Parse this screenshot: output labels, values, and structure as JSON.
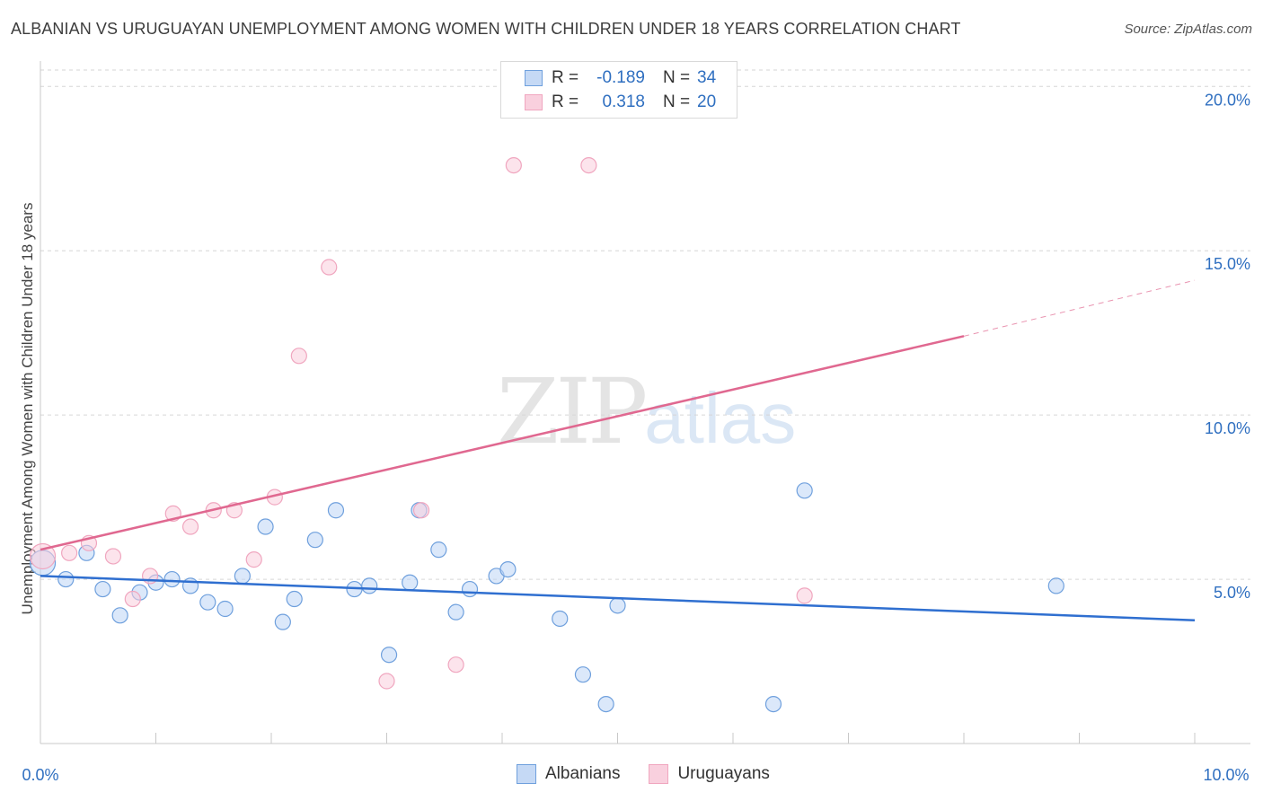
{
  "header": {
    "title": "ALBANIAN VS URUGUAYAN UNEMPLOYMENT AMONG WOMEN WITH CHILDREN UNDER 18 YEARS CORRELATION CHART",
    "source": "Source: ZipAtlas.com"
  },
  "watermark": {
    "zip": "ZIP",
    "atlas": "atlas"
  },
  "legend": {
    "rows": [
      {
        "r_label": "R =",
        "r_value": "-0.189",
        "n_label": "N =",
        "n_value": "34"
      },
      {
        "r_label": "R =",
        "r_value": "0.318",
        "n_label": "N =",
        "n_value": "20"
      }
    ],
    "bottom": [
      "Albanians",
      "Uruguayans"
    ]
  },
  "chart_data": {
    "type": "scatter",
    "title": "ALBANIAN VS URUGUAYAN UNEMPLOYMENT AMONG WOMEN WITH CHILDREN UNDER 18 YEARS CORRELATION CHART",
    "ylabel": "Unemployment Among Women with Children Under 18 years",
    "xlim": [
      0,
      10
    ],
    "ylim": [
      0,
      20.5
    ],
    "x_tick_labels": [
      "0.0%",
      "10.0%"
    ],
    "y_tick_labels": [
      "5.0%",
      "10.0%",
      "15.0%",
      "20.0%"
    ],
    "y_ticks": [
      5,
      10,
      15,
      20
    ],
    "grid": "horizontal dashed",
    "legend_position": "top-center",
    "colors": {
      "albanians": "#6fa0dd",
      "uruguayans": "#f0a6bf",
      "albanians_line": "#2f6fd0",
      "uruguayans_line": "#e06890"
    },
    "series": [
      {
        "name": "Albanians",
        "r": -0.189,
        "n": 34,
        "points": [
          [
            0.02,
            5.5
          ],
          [
            0.22,
            5.0
          ],
          [
            0.4,
            5.8
          ],
          [
            0.54,
            4.7
          ],
          [
            0.69,
            3.9
          ],
          [
            0.86,
            4.6
          ],
          [
            1.0,
            4.9
          ],
          [
            1.14,
            5.0
          ],
          [
            1.3,
            4.8
          ],
          [
            1.45,
            4.3
          ],
          [
            1.6,
            4.1
          ],
          [
            1.75,
            5.1
          ],
          [
            1.95,
            6.6
          ],
          [
            2.1,
            3.7
          ],
          [
            2.2,
            4.4
          ],
          [
            2.38,
            6.2
          ],
          [
            2.56,
            7.1
          ],
          [
            2.72,
            4.7
          ],
          [
            2.85,
            4.8
          ],
          [
            3.02,
            2.7
          ],
          [
            3.2,
            4.9
          ],
          [
            3.28,
            7.1
          ],
          [
            3.45,
            5.9
          ],
          [
            3.6,
            4.0
          ],
          [
            3.72,
            4.7
          ],
          [
            3.95,
            5.1
          ],
          [
            4.05,
            5.3
          ],
          [
            4.5,
            3.8
          ],
          [
            4.7,
            2.1
          ],
          [
            4.9,
            1.2
          ],
          [
            5.0,
            4.2
          ],
          [
            6.35,
            1.2
          ],
          [
            6.62,
            7.7
          ],
          [
            8.8,
            4.8
          ]
        ],
        "trend": {
          "x0": 0.0,
          "y0": 5.1,
          "x1": 10.0,
          "y1": 3.75
        }
      },
      {
        "name": "Uruguayans",
        "r": 0.318,
        "n": 20,
        "points": [
          [
            0.02,
            5.7
          ],
          [
            0.25,
            5.8
          ],
          [
            0.42,
            6.1
          ],
          [
            0.63,
            5.7
          ],
          [
            0.8,
            4.4
          ],
          [
            0.95,
            5.1
          ],
          [
            1.15,
            7.0
          ],
          [
            1.3,
            6.6
          ],
          [
            1.5,
            7.1
          ],
          [
            1.68,
            7.1
          ],
          [
            1.85,
            5.6
          ],
          [
            2.03,
            7.5
          ],
          [
            2.24,
            11.8
          ],
          [
            2.5,
            14.5
          ],
          [
            3.0,
            1.9
          ],
          [
            3.3,
            7.1
          ],
          [
            3.6,
            2.4
          ],
          [
            4.1,
            17.6
          ],
          [
            4.75,
            17.6
          ],
          [
            6.62,
            4.5
          ]
        ],
        "trend": {
          "x0": 0.0,
          "y0": 5.9,
          "x1": 8.0,
          "y1": 12.4
        },
        "trend_dashed": {
          "x0": 8.0,
          "y0": 12.4,
          "x1": 10.0,
          "y1": 14.1
        }
      }
    ]
  }
}
